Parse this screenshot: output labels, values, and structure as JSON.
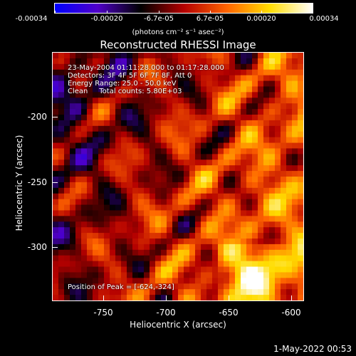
{
  "title": "Reconstructed RHESSI Image",
  "colorbar": {
    "tick_labels": [
      "-0.00034",
      "-0.00020",
      "-6.7e-05",
      "6.7e-05",
      "0.00020",
      "0.00034"
    ],
    "units_label": "(photons cm⁻² s⁻¹ asec⁻²)",
    "range": [
      -0.00034,
      0.00034
    ],
    "colormap": [
      "#0000ff",
      "#5000c8",
      "#000000",
      "#b40000",
      "#ff6400",
      "#ffdc00",
      "#ffffff"
    ]
  },
  "info": {
    "time_range": "23-May-2004 01:11:28.000 to 01:17:28.000",
    "detectors": "Detectors: 3F 4F 5F 6F 7F 8F, Att 0",
    "energy": "Energy Range: 25.0 - 50.0 keV",
    "clean": "Clean     Total counts: 5.80E+03",
    "peak": "Position of Peak = [-624,-324]"
  },
  "axes": {
    "xlabel": "Heliocentric X (arcsec)",
    "ylabel": "Heliocentric Y (arcsec)",
    "x_ticks": [
      "-750",
      "-700",
      "-650",
      "-600"
    ],
    "y_ticks": [
      "-200",
      "-250",
      "-300"
    ]
  },
  "datestamp": "1-May-2022 00:53",
  "chart_data": {
    "type": "heatmap",
    "title": "Reconstructed RHESSI Image",
    "xlabel": "Heliocentric X (arcsec)",
    "ylabel": "Heliocentric Y (arcsec)",
    "xlim": [
      -773,
      -572
    ],
    "ylim": [
      -347,
      -148
    ],
    "x_ticks": [
      -750,
      -700,
      -650,
      -600
    ],
    "y_ticks": [
      -200,
      -250,
      -300
    ],
    "colorbar_range": [
      -0.00034,
      0.00034
    ],
    "peak_position": [
      -624,
      -324
    ],
    "structure": "negative (blue/purple) values on the left and along the left diagonal; positive (red/orange/yellow) emission across the center and right, strongest near the bottom-right"
  }
}
